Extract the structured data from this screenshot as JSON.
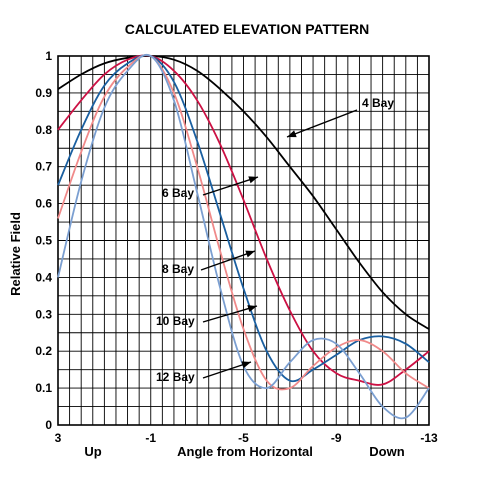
{
  "chart_data": {
    "type": "line",
    "title": "CALCULATED ELEVATION PATTERN",
    "xlabel": "Angle from Horizontal",
    "ylabel": "Relative Field",
    "x_direction_labels": {
      "left": "Up",
      "right": "Down"
    },
    "xlim": [
      3,
      -13
    ],
    "ylim": [
      0,
      1
    ],
    "x_ticks": [
      3,
      -1,
      -5,
      -9,
      -13
    ],
    "y_ticks": [
      0,
      0.1,
      0.2,
      0.3,
      0.4,
      0.5,
      0.6,
      0.7,
      0.8,
      0.9,
      1
    ],
    "grid": true,
    "series": [
      {
        "name": "4 Bay",
        "color": "#000000",
        "x": [
          3,
          2,
          1,
          0,
          -1,
          -2,
          -3,
          -4,
          -5,
          -6,
          -7,
          -8,
          -9,
          -10,
          -11,
          -12,
          -13
        ],
        "y": [
          0.91,
          0.95,
          0.98,
          0.995,
          1.0,
          0.99,
          0.96,
          0.91,
          0.85,
          0.78,
          0.7,
          0.62,
          0.53,
          0.44,
          0.36,
          0.3,
          0.26
        ]
      },
      {
        "name": "6 Bay",
        "color": "#cc1144",
        "x": [
          3,
          2,
          1,
          0,
          -1,
          -2,
          -3,
          -4,
          -5,
          -6,
          -7,
          -8,
          -9,
          -10,
          -11,
          -12,
          -13
        ],
        "y": [
          0.8,
          0.88,
          0.95,
          0.99,
          1.0,
          0.96,
          0.88,
          0.76,
          0.61,
          0.45,
          0.31,
          0.2,
          0.14,
          0.12,
          0.11,
          0.15,
          0.2
        ]
      },
      {
        "name": "8 Bay",
        "color": "#1a5fa0",
        "x": [
          3,
          2,
          1,
          0,
          -1,
          -2,
          -3,
          -4,
          -5,
          -6,
          -7,
          -8,
          -9,
          -10,
          -11,
          -12,
          -13
        ],
        "y": [
          0.65,
          0.8,
          0.92,
          0.98,
          1.0,
          0.93,
          0.77,
          0.57,
          0.37,
          0.2,
          0.12,
          0.15,
          0.19,
          0.23,
          0.24,
          0.22,
          0.17
        ]
      },
      {
        "name": "10 Bay",
        "color": "#f08a8a",
        "x": [
          3,
          2,
          1,
          0,
          -1,
          -2,
          -3,
          -4,
          -5,
          -6,
          -7,
          -8,
          -9,
          -10,
          -11,
          -12,
          -13
        ],
        "y": [
          0.56,
          0.74,
          0.89,
          0.97,
          1.0,
          0.9,
          0.7,
          0.47,
          0.26,
          0.12,
          0.1,
          0.16,
          0.21,
          0.23,
          0.2,
          0.14,
          0.1
        ]
      },
      {
        "name": "12 Bay",
        "color": "#7b9fd1",
        "x": [
          3,
          2,
          1,
          0,
          -1,
          -2,
          -3,
          -4,
          -5,
          -6,
          -7,
          -8,
          -9,
          -10,
          -11,
          -12,
          -13
        ],
        "y": [
          0.4,
          0.66,
          0.86,
          0.96,
          1.0,
          0.88,
          0.63,
          0.37,
          0.16,
          0.1,
          0.17,
          0.23,
          0.22,
          0.14,
          0.05,
          0.02,
          0.1
        ]
      }
    ],
    "annotations": [
      {
        "label": "4 Bay",
        "series": "4 Bay"
      },
      {
        "label": "6 Bay",
        "series": "6 Bay"
      },
      {
        "label": "8 Bay",
        "series": "8 Bay"
      },
      {
        "label": "10 Bay",
        "series": "10 Bay"
      },
      {
        "label": "12 Bay",
        "series": "12 Bay"
      }
    ]
  }
}
